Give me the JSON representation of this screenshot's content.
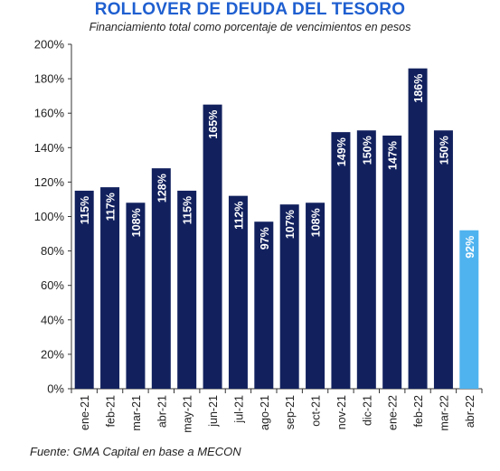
{
  "chart_data": {
    "type": "bar",
    "title": "ROLLOVER DE DEUDA DEL TESORO",
    "subtitle": "Financiamiento total como porcentaje de vencimientos en pesos",
    "source": "Fuente: GMA Capital en base a MECON",
    "xlabel": "",
    "ylabel": "",
    "ylim": [
      0,
      200
    ],
    "yticks": [
      0,
      20,
      40,
      60,
      80,
      100,
      120,
      140,
      160,
      180,
      200
    ],
    "y_tick_suffix": "%",
    "grid": false,
    "categories": [
      "ene-21",
      "feb-21",
      "mar-21",
      "abr-21",
      "may-21",
      "jun-21",
      "jul-21",
      "ago-21",
      "sep-21",
      "oct-21",
      "nov-21",
      "dic-21",
      "ene-22",
      "feb-22",
      "mar-22",
      "abr-22"
    ],
    "values": [
      115,
      117,
      108,
      128,
      115,
      165,
      112,
      97,
      107,
      108,
      149,
      150,
      147,
      186,
      150,
      92
    ],
    "data_labels": [
      "115%",
      "117%",
      "108%",
      "128%",
      "115%",
      "165%",
      "112%",
      "97%",
      "107%",
      "108%",
      "149%",
      "150%",
      "147%",
      "186%",
      "150%",
      "92%"
    ],
    "colors": {
      "bar": "#12215e",
      "highlight_bar": "#4fb3ef",
      "title": "#1f5fd0"
    },
    "highlight_index": 15
  }
}
